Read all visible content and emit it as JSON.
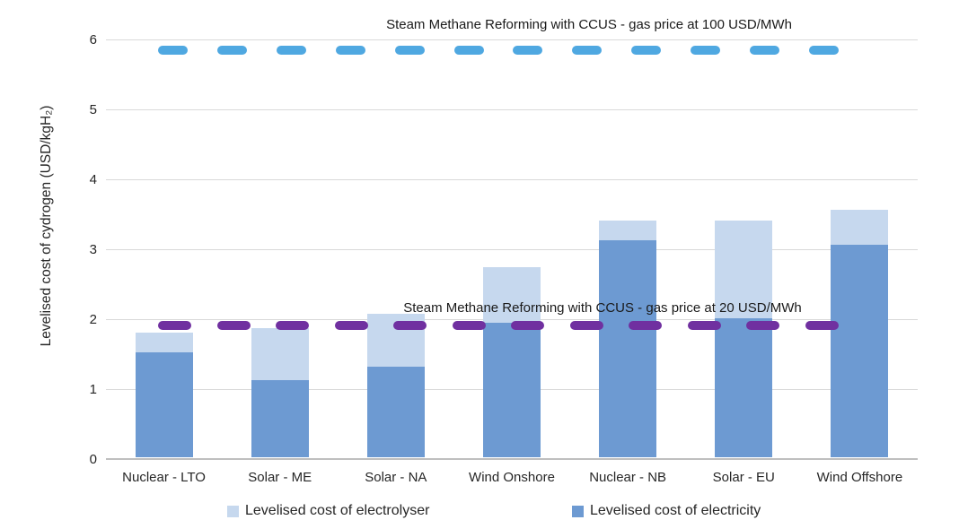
{
  "chart_data": {
    "type": "bar",
    "stacked": true,
    "ylabel": "Levelised cost of cydrogen (USD/kgH₂)",
    "categories": [
      "Nuclear - LTO",
      "Solar - ME",
      "Solar - NA",
      "Wind Onshore",
      "Nuclear - NB",
      "Solar - EU",
      "Wind Offshore"
    ],
    "series": [
      {
        "name": "Levelised cost of electricity",
        "color": "#6d9ad2",
        "values": [
          1.5,
          1.1,
          1.29,
          1.92,
          3.1,
          1.99,
          3.04
        ]
      },
      {
        "name": "Levelised cost of electrolyser",
        "color": "#c6d8ee",
        "values": [
          0.28,
          0.75,
          0.76,
          0.8,
          0.29,
          1.4,
          0.5
        ]
      }
    ],
    "totals": [
      1.78,
      1.85,
      2.05,
      2.72,
      3.39,
      3.39,
      3.54
    ],
    "reference_lines": [
      {
        "label": "Steam Methane Reforming with CCUS - gas price at 100 USD/MWh",
        "value": 5.85,
        "color": "#4fa8e1"
      },
      {
        "label": "Steam Methane Reforming with CCUS - gas price at 20 USD/MWh",
        "value": 1.91,
        "color": "#7030a0"
      }
    ],
    "ylim": [
      0,
      6
    ],
    "yticks": [
      0,
      1,
      2,
      3,
      4,
      5,
      6
    ],
    "grid": true,
    "legend_position": "bottom",
    "legend_order": [
      1,
      0
    ],
    "colors": {
      "gridline": "#d9d9d9",
      "axis_line": "#bfbfbf",
      "text": "#262626"
    }
  }
}
